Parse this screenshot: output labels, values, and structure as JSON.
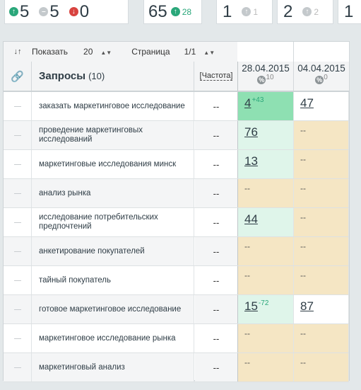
{
  "summary": {
    "up": "5",
    "same": "5",
    "down": "0",
    "top_total": "65",
    "top_delta": "28",
    "box1_value": "1",
    "box1_sub": "1",
    "box2_value": "2",
    "box2_sub": "2",
    "box3_value": "1"
  },
  "toolbar": {
    "show_label": "Показать",
    "show_value": "20",
    "page_label": "Страница",
    "page_value": "1/1"
  },
  "header": {
    "queries_title": "Запросы",
    "queries_count": "(10)",
    "frequency": "[Частота]",
    "dates": [
      {
        "date": "28.04.2015",
        "sub": "10"
      },
      {
        "date": "04.04.2015",
        "sub": "0"
      }
    ]
  },
  "rows": [
    {
      "query": "заказать маркетинговое исследование",
      "freq": "--",
      "d1": "4",
      "d1_delta": "+43",
      "d2": "47"
    },
    {
      "query": "проведение маркетинговых исследований",
      "freq": "--",
      "d1": "76",
      "d1_delta": "",
      "d2": "--"
    },
    {
      "query": "маркетинговые исследования минск",
      "freq": "--",
      "d1": "13",
      "d1_delta": "",
      "d2": "--"
    },
    {
      "query": "анализ рынка",
      "freq": "--",
      "d1": "--",
      "d1_delta": "",
      "d2": "--"
    },
    {
      "query": "исследование потребительских предпочтений",
      "freq": "--",
      "d1": "44",
      "d1_delta": "",
      "d2": "--"
    },
    {
      "query": "анкетирование покупателей",
      "freq": "--",
      "d1": "--",
      "d1_delta": "",
      "d2": "--"
    },
    {
      "query": "тайный покупатель",
      "freq": "--",
      "d1": "--",
      "d1_delta": "",
      "d2": "--"
    },
    {
      "query": "готовое маркетинговое исследование",
      "freq": "--",
      "d1": "15",
      "d1_delta": "-72",
      "d2": "87"
    },
    {
      "query": "маркетинговое исследование рынка",
      "freq": "--",
      "d1": "--",
      "d1_delta": "",
      "d2": "--"
    },
    {
      "query": "маркетинговый анализ",
      "freq": "--",
      "d1": "--",
      "d1_delta": "",
      "d2": "--"
    }
  ],
  "colors": {
    "green": "#8ee0b2",
    "light_green": "#dff5ea",
    "tan": "#f5e6c4",
    "accent": "#2aa77a"
  }
}
